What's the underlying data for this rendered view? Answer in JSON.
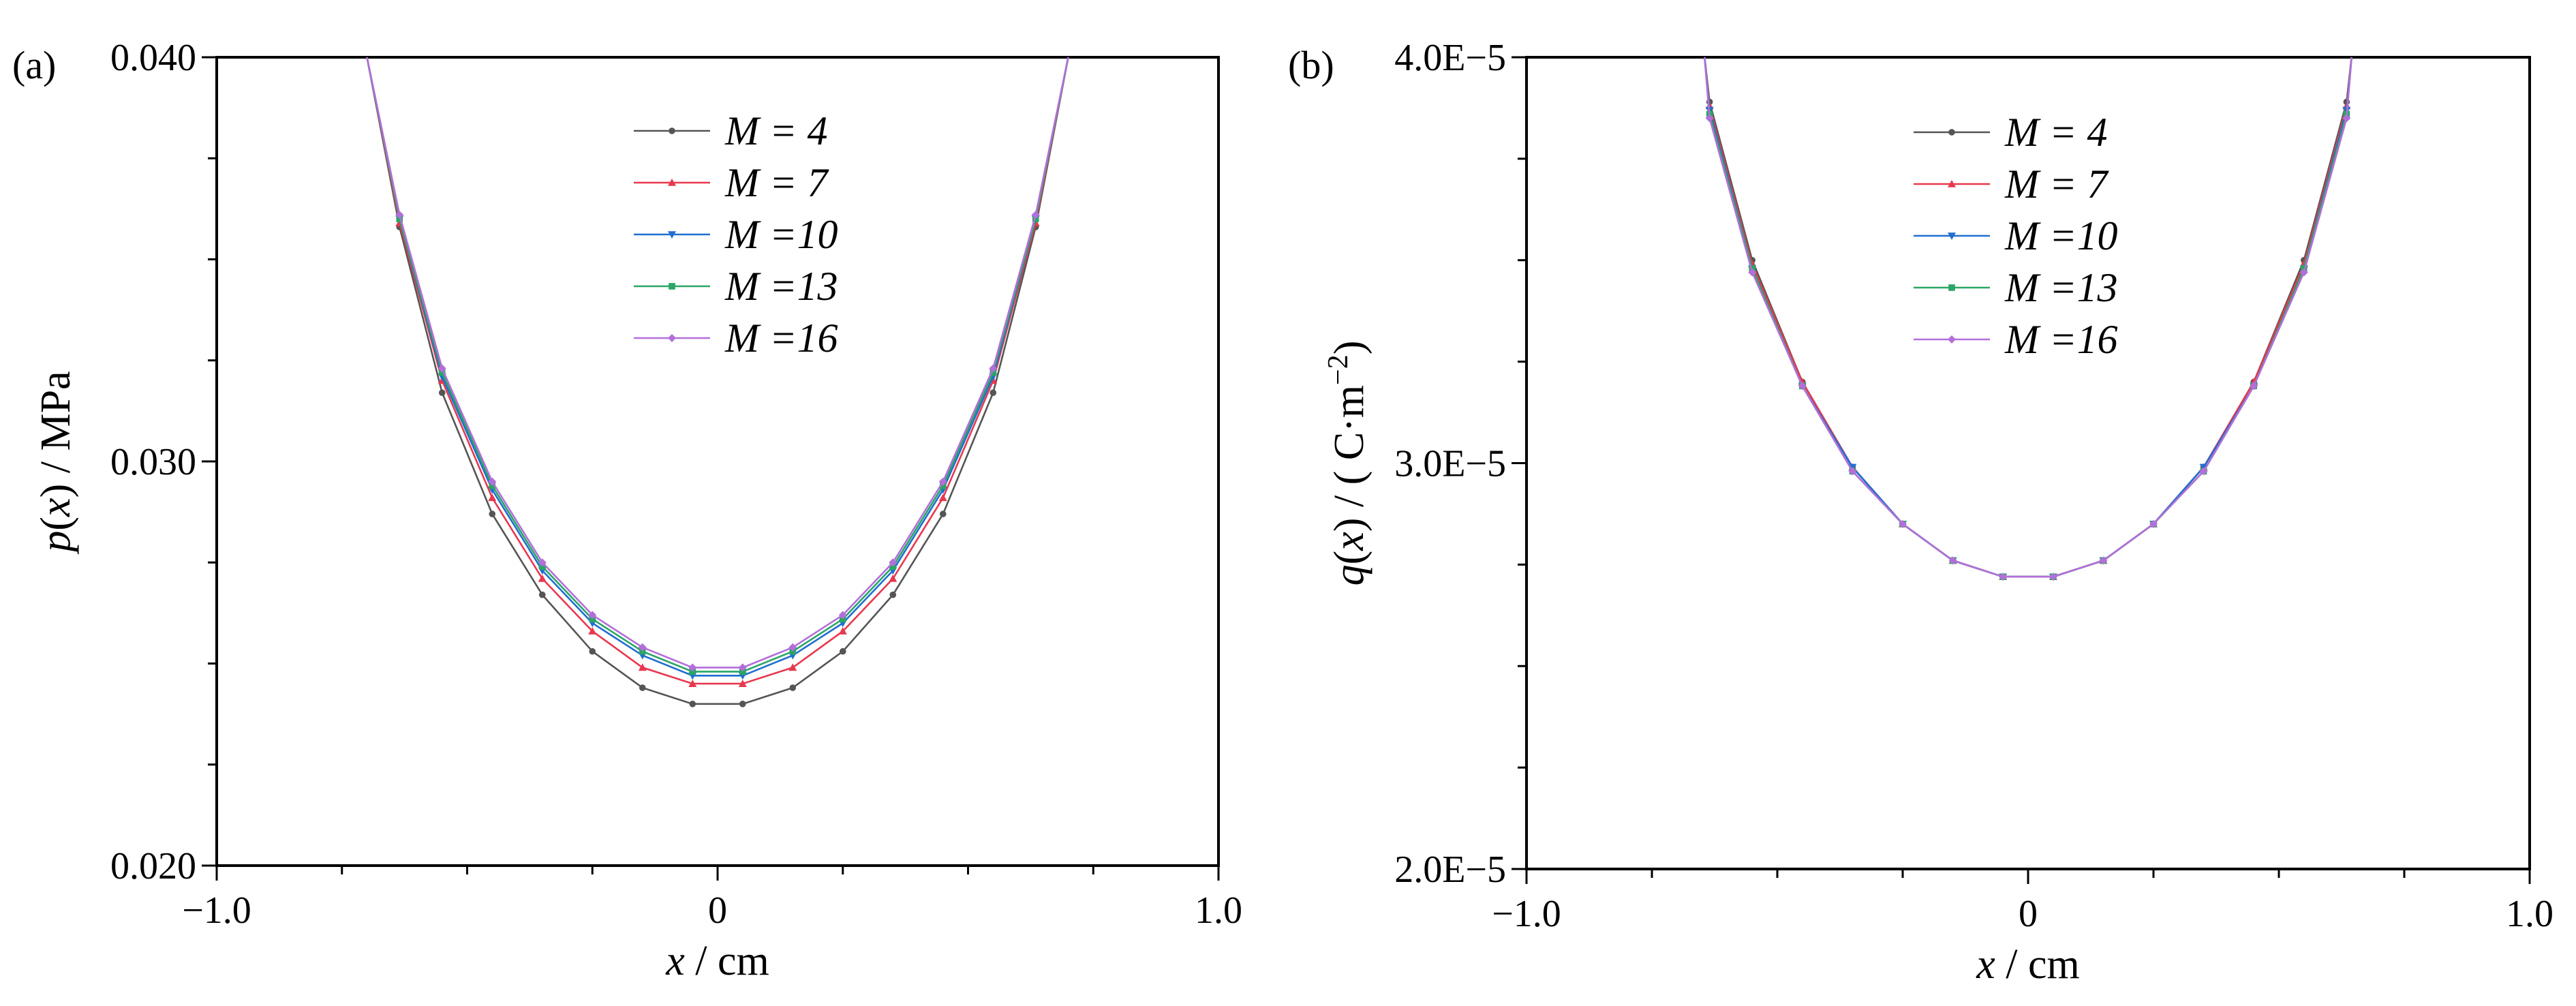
{
  "chart_data": [
    {
      "panel_label": "(a)",
      "type": "line",
      "xlabel_var": "x",
      "xlabel_unit": " / cm",
      "ylabel_var": "p",
      "ylabel_arg": "x",
      "ylabel_unit": " / MPa",
      "xlim": [
        -1.0,
        1.0
      ],
      "ylim": [
        0.02,
        0.04
      ],
      "xticks": [
        -1.0,
        0,
        1.0
      ],
      "xtick_labels": [
        "−1.0",
        "0",
        "1.0"
      ],
      "yticks": [
        0.02,
        0.03,
        0.04
      ],
      "ytick_labels": [
        "0.020",
        "0.030",
        "0.040"
      ],
      "x": [
        -0.7,
        -0.635,
        -0.55,
        -0.45,
        -0.35,
        -0.25,
        -0.15,
        -0.05,
        0.05,
        0.15,
        0.25,
        0.35,
        0.45,
        0.55,
        0.635,
        0.7
      ],
      "series": [
        {
          "name": "M = 4",
          "color": "#555555",
          "marker": "dot",
          "values": [
            0.04,
            0.0358,
            0.0317,
            0.0287,
            0.0267,
            0.0253,
            0.0244,
            0.024,
            0.024,
            0.0244,
            0.0253,
            0.0267,
            0.0287,
            0.0317,
            0.0358,
            0.04
          ]
        },
        {
          "name": "M = 7",
          "color": "#e8384f",
          "marker": "triangle-up",
          "values": [
            0.04,
            0.0359,
            0.032,
            0.0291,
            0.0271,
            0.0258,
            0.0249,
            0.0245,
            0.0245,
            0.0249,
            0.0258,
            0.0271,
            0.0291,
            0.032,
            0.0359,
            0.04
          ]
        },
        {
          "name": "M =10",
          "color": "#1f6fd1",
          "marker": "triangle-down",
          "values": [
            0.04,
            0.036,
            0.0321,
            0.0293,
            0.0273,
            0.026,
            0.0252,
            0.0247,
            0.0247,
            0.0252,
            0.026,
            0.0273,
            0.0293,
            0.0321,
            0.036,
            0.04
          ]
        },
        {
          "name": "M =13",
          "color": "#2aa565",
          "marker": "square",
          "values": [
            0.04,
            0.036,
            0.0322,
            0.0294,
            0.0274,
            0.0261,
            0.0253,
            0.0248,
            0.0248,
            0.0253,
            0.0261,
            0.0274,
            0.0294,
            0.0322,
            0.036,
            0.04
          ]
        },
        {
          "name": "M =16",
          "color": "#b36fd9",
          "marker": "diamond",
          "values": [
            0.04,
            0.0361,
            0.0323,
            0.0295,
            0.0275,
            0.0262,
            0.0254,
            0.0249,
            0.0249,
            0.0254,
            0.0262,
            0.0275,
            0.0295,
            0.0323,
            0.0361,
            0.04
          ]
        }
      ],
      "legend_position": "top-center",
      "grid": false
    },
    {
      "panel_label": "(b)",
      "type": "line",
      "xlabel_var": "x",
      "xlabel_unit": " / cm",
      "ylabel_var": "q",
      "ylabel_arg": "x",
      "ylabel_unit_pre": " / ( C·m",
      "ylabel_unit_sup": "−2",
      "ylabel_unit_post": ")",
      "xlim": [
        -1.0,
        1.0
      ],
      "ylim": [
        2e-05,
        4e-05
      ],
      "xticks": [
        -1.0,
        0,
        1.0
      ],
      "xtick_labels": [
        "−1.0",
        "0",
        "1.0"
      ],
      "yticks": [
        2e-05,
        3e-05,
        4e-05
      ],
      "ytick_labels": [
        "2.0E−5",
        "3.0E−5",
        "4.0E−5"
      ],
      "x": [
        -0.645,
        -0.635,
        -0.55,
        -0.45,
        -0.35,
        -0.25,
        -0.15,
        -0.05,
        0.05,
        0.15,
        0.25,
        0.35,
        0.45,
        0.55,
        0.635,
        0.645
      ],
      "series": [
        {
          "name": "M = 4",
          "color": "#555555",
          "marker": "dot",
          "values": [
            4e-05,
            3.89e-05,
            3.5e-05,
            3.2e-05,
            2.99e-05,
            2.85e-05,
            2.76e-05,
            2.72e-05,
            2.72e-05,
            2.76e-05,
            2.85e-05,
            2.99e-05,
            3.2e-05,
            3.5e-05,
            3.89e-05,
            4e-05
          ]
        },
        {
          "name": "M = 7",
          "color": "#e8384f",
          "marker": "triangle-up",
          "values": [
            4e-05,
            3.88e-05,
            3.49e-05,
            3.2e-05,
            2.99e-05,
            2.85e-05,
            2.76e-05,
            2.72e-05,
            2.72e-05,
            2.76e-05,
            2.85e-05,
            2.99e-05,
            3.2e-05,
            3.49e-05,
            3.88e-05,
            4e-05
          ]
        },
        {
          "name": "M =10",
          "color": "#1f6fd1",
          "marker": "triangle-down",
          "values": [
            4e-05,
            3.87e-05,
            3.48e-05,
            3.19e-05,
            2.99e-05,
            2.85e-05,
            2.76e-05,
            2.72e-05,
            2.72e-05,
            2.76e-05,
            2.85e-05,
            2.99e-05,
            3.19e-05,
            3.48e-05,
            3.87e-05,
            4e-05
          ]
        },
        {
          "name": "M =13",
          "color": "#2aa565",
          "marker": "square",
          "values": [
            4e-05,
            3.86e-05,
            3.48e-05,
            3.19e-05,
            2.98e-05,
            2.85e-05,
            2.76e-05,
            2.72e-05,
            2.72e-05,
            2.76e-05,
            2.85e-05,
            2.98e-05,
            3.19e-05,
            3.48e-05,
            3.86e-05,
            4e-05
          ]
        },
        {
          "name": "M =16",
          "color": "#b36fd9",
          "marker": "diamond",
          "values": [
            4e-05,
            3.85e-05,
            3.47e-05,
            3.19e-05,
            2.98e-05,
            2.85e-05,
            2.76e-05,
            2.72e-05,
            2.72e-05,
            2.76e-05,
            2.85e-05,
            2.98e-05,
            3.19e-05,
            3.47e-05,
            3.85e-05,
            4e-05
          ]
        }
      ],
      "legend_position": "top-center",
      "grid": false
    }
  ]
}
